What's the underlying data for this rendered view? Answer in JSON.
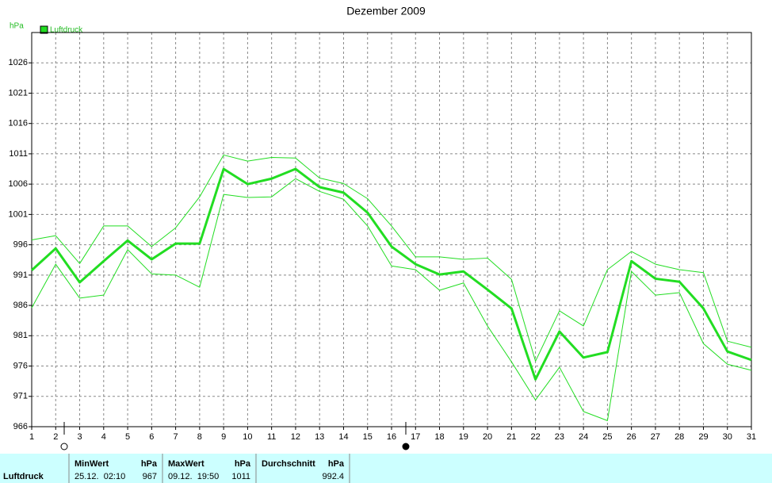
{
  "chart_data": {
    "type": "line",
    "title": "Dezember 2009",
    "y_unit": "hPa",
    "x": [
      1,
      2,
      3,
      4,
      5,
      6,
      7,
      8,
      9,
      10,
      11,
      12,
      13,
      14,
      15,
      16,
      17,
      18,
      19,
      20,
      21,
      22,
      23,
      24,
      25,
      26,
      27,
      28,
      29,
      30,
      31
    ],
    "xlim": [
      1,
      31
    ],
    "xticks": [
      1,
      2,
      3,
      4,
      5,
      6,
      7,
      8,
      9,
      10,
      11,
      12,
      13,
      14,
      15,
      16,
      17,
      18,
      19,
      20,
      21,
      22,
      23,
      24,
      25,
      26,
      27,
      28,
      29,
      30,
      31
    ],
    "ylim": [
      966,
      1031
    ],
    "yticks": [
      966,
      971,
      976,
      981,
      986,
      991,
      996,
      1001,
      1006,
      1011,
      1016,
      1021,
      1026
    ],
    "grid": true,
    "legend": "top-left",
    "series": [
      {
        "name": "Luftdruck",
        "color": "#22dd22",
        "width": 3,
        "values": [
          991.8,
          995.4,
          989.8,
          993.3,
          996.7,
          993.6,
          996.2,
          996.2,
          1008.5,
          1006.0,
          1006.9,
          1008.5,
          1005.5,
          1004.6,
          1001.3,
          995.7,
          992.8,
          991.1,
          991.6,
          988.6,
          985.5,
          973.8,
          981.7,
          977.4,
          978.3,
          993.3,
          990.4,
          989.9,
          985.5,
          978.4,
          977.0
        ]
      },
      {
        "color": "#22dd22",
        "width": 1,
        "values": [
          996.8,
          997.5,
          992.9,
          999.1,
          999.1,
          995.7,
          998.8,
          1003.9,
          1010.8,
          1009.8,
          1010.4,
          1010.3,
          1007.0,
          1006.1,
          1003.6,
          999.1,
          994.0,
          994.0,
          993.6,
          993.8,
          990.3,
          976.8,
          985.1,
          982.6,
          991.9,
          994.9,
          992.8,
          991.9,
          991.4,
          980.1,
          979.1
        ]
      },
      {
        "color": "#22dd22",
        "width": 1,
        "values": [
          985.6,
          992.8,
          987.2,
          987.7,
          995.2,
          991.2,
          991.0,
          989.0,
          1004.3,
          1003.8,
          1003.9,
          1006.9,
          1004.8,
          1003.5,
          999.1,
          992.5,
          991.9,
          988.5,
          989.7,
          982.6,
          976.7,
          970.4,
          975.8,
          968.5,
          967.0,
          991.6,
          987.7,
          988.1,
          979.7,
          976.3,
          975.3
        ]
      }
    ]
  },
  "summary": {
    "row_label": "Luftdruck",
    "columns": [
      {
        "label": "MinWert",
        "unit": "hPa",
        "date": "25.12.  02:10",
        "value": "967"
      },
      {
        "label": "MaxWert",
        "unit": "hPa",
        "date": "09.12.  19:50",
        "value": "1011"
      },
      {
        "label": "Durchschnitt",
        "unit": "hPa",
        "value": "992.4"
      }
    ]
  }
}
